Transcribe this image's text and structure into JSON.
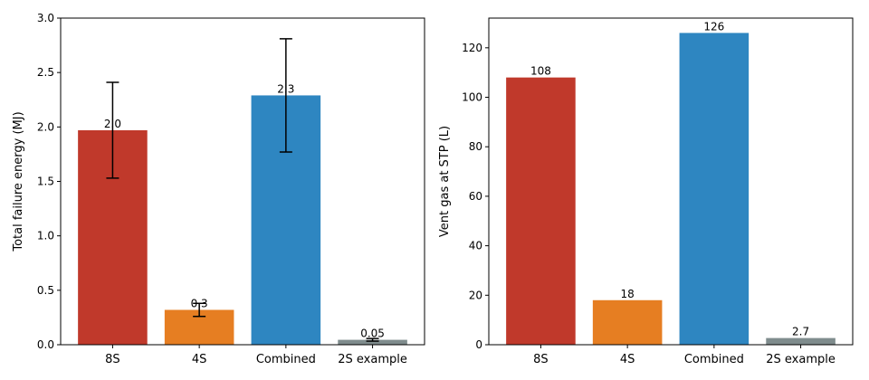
{
  "chart_data": [
    {
      "type": "bar",
      "categories": [
        "8S",
        "4S",
        "Combined",
        "2S example"
      ],
      "values": [
        1.97,
        0.32,
        2.29,
        0.045
      ],
      "value_labels": [
        "2.0",
        "0.3",
        "2.3",
        "0.05"
      ],
      "error_bars": [
        0.44,
        0.06,
        0.52,
        0.012
      ],
      "colors": [
        "#c0392b",
        "#e67e22",
        "#2e86c1",
        "#7f8c8d"
      ],
      "title": "",
      "xlabel": "",
      "ylabel": "Total failure energy (MJ)",
      "ylim": [
        0,
        3.0
      ],
      "yticks": [
        0.0,
        0.5,
        1.0,
        1.5,
        2.0,
        2.5,
        3.0
      ],
      "ytick_labels": [
        "0.0",
        "0.5",
        "1.0",
        "1.5",
        "2.0",
        "2.5",
        "3.0"
      ],
      "grid": false
    },
    {
      "type": "bar",
      "categories": [
        "8S",
        "4S",
        "Combined",
        "2S example"
      ],
      "values": [
        108,
        18,
        126,
        2.7
      ],
      "value_labels": [
        "108",
        "18",
        "126",
        "2.7"
      ],
      "colors": [
        "#c0392b",
        "#e67e22",
        "#2e86c1",
        "#7f8c8d"
      ],
      "title": "",
      "xlabel": "",
      "ylabel": "Vent gas at STP (L)",
      "ylim": [
        0,
        132
      ],
      "yticks": [
        0,
        20,
        40,
        60,
        80,
        100,
        120
      ],
      "ytick_labels": [
        "0",
        "20",
        "40",
        "60",
        "80",
        "100",
        "120"
      ],
      "grid": false
    }
  ]
}
